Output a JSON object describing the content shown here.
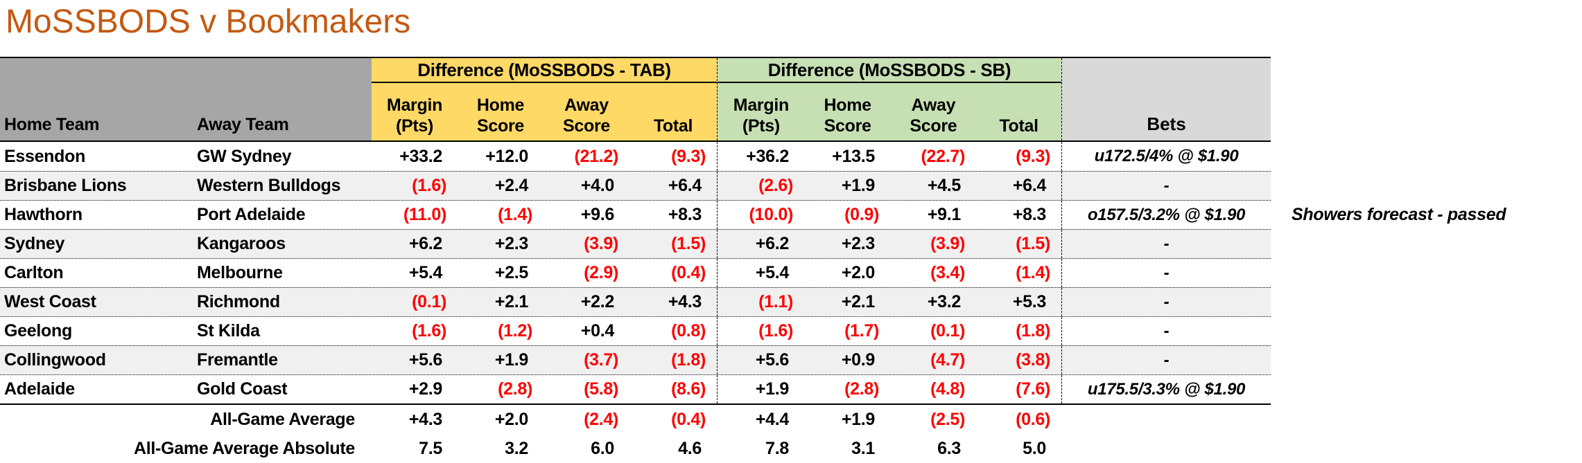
{
  "title": "MoSSBODS v Bookmakers",
  "colors": {
    "title_color": "#C45911",
    "tab_yellow": "#FFD966",
    "sb_green": "#C6E0B4",
    "gray_block": "#A6A6A6",
    "bets_gray": "#D9D9D9",
    "stripe": "#F0F0F0",
    "neg_red": "#FF0000"
  },
  "table": {
    "group_headers": {
      "tab": "Difference (MoSSBODS - TAB)",
      "sb": "Difference (MoSSBODS - SB)"
    },
    "col_headers": {
      "home_team": "Home Team",
      "away_team": "Away Team",
      "bets": "Bets",
      "metric_cols": [
        {
          "line1": "Margin",
          "line2": "(Pts)"
        },
        {
          "line1": "Home",
          "line2": "Score"
        },
        {
          "line1": "Away",
          "line2": "Score"
        },
        {
          "line1": "",
          "line2": "Total"
        }
      ]
    },
    "rows": [
      {
        "home": "Essendon",
        "away": "GW Sydney",
        "tab": [
          "+33.2",
          "+12.0",
          "(21.2)",
          "(9.3)"
        ],
        "sb": [
          "+36.2",
          "+13.5",
          "(22.7)",
          "(9.3)"
        ],
        "bet": "u172.5/4% @ $1.90",
        "note": ""
      },
      {
        "home": "Brisbane Lions",
        "away": "Western Bulldogs",
        "tab": [
          "(1.6)",
          "+2.4",
          "+4.0",
          "+6.4"
        ],
        "sb": [
          "(2.6)",
          "+1.9",
          "+4.5",
          "+6.4"
        ],
        "bet": "-",
        "note": ""
      },
      {
        "home": "Hawthorn",
        "away": "Port Adelaide",
        "tab": [
          "(11.0)",
          "(1.4)",
          "+9.6",
          "+8.3"
        ],
        "sb": [
          "(10.0)",
          "(0.9)",
          "+9.1",
          "+8.3"
        ],
        "bet": "o157.5/3.2% @ $1.90",
        "note": "Showers forecast - passed"
      },
      {
        "home": "Sydney",
        "away": "Kangaroos",
        "tab": [
          "+6.2",
          "+2.3",
          "(3.9)",
          "(1.5)"
        ],
        "sb": [
          "+6.2",
          "+2.3",
          "(3.9)",
          "(1.5)"
        ],
        "bet": "-",
        "note": ""
      },
      {
        "home": "Carlton",
        "away": "Melbourne",
        "tab": [
          "+5.4",
          "+2.5",
          "(2.9)",
          "(0.4)"
        ],
        "sb": [
          "+5.4",
          "+2.0",
          "(3.4)",
          "(1.4)"
        ],
        "bet": "-",
        "note": ""
      },
      {
        "home": "West Coast",
        "away": "Richmond",
        "tab": [
          "(0.1)",
          "+2.1",
          "+2.2",
          "+4.3"
        ],
        "sb": [
          "(1.1)",
          "+2.1",
          "+3.2",
          "+5.3"
        ],
        "bet": "-",
        "note": ""
      },
      {
        "home": "Geelong",
        "away": "St Kilda",
        "tab": [
          "(1.6)",
          "(1.2)",
          "+0.4",
          "(0.8)"
        ],
        "sb": [
          "(1.6)",
          "(1.7)",
          "(0.1)",
          "(1.8)"
        ],
        "bet": "-",
        "note": ""
      },
      {
        "home": "Collingwood",
        "away": "Fremantle",
        "tab": [
          "+5.6",
          "+1.9",
          "(3.7)",
          "(1.8)"
        ],
        "sb": [
          "+5.6",
          "+0.9",
          "(4.7)",
          "(3.8)"
        ],
        "bet": "-",
        "note": ""
      },
      {
        "home": "Adelaide",
        "away": "Gold Coast",
        "tab": [
          "+2.9",
          "(2.8)",
          "(5.8)",
          "(8.6)"
        ],
        "sb": [
          "+1.9",
          "(2.8)",
          "(4.8)",
          "(7.6)"
        ],
        "bet": "u175.5/3.3% @ $1.90",
        "note": ""
      }
    ],
    "summary_rows": [
      {
        "label": "All-Game Average",
        "tab": [
          "+4.3",
          "+2.0",
          "(2.4)",
          "(0.4)"
        ],
        "sb": [
          "+4.4",
          "+1.9",
          "(2.5)",
          "(0.6)"
        ]
      },
      {
        "label": "All-Game Average Absolute",
        "tab": [
          "7.5",
          "3.2",
          "6.0",
          "4.6"
        ],
        "sb": [
          "7.8",
          "3.1",
          "6.3",
          "5.0"
        ]
      }
    ]
  }
}
